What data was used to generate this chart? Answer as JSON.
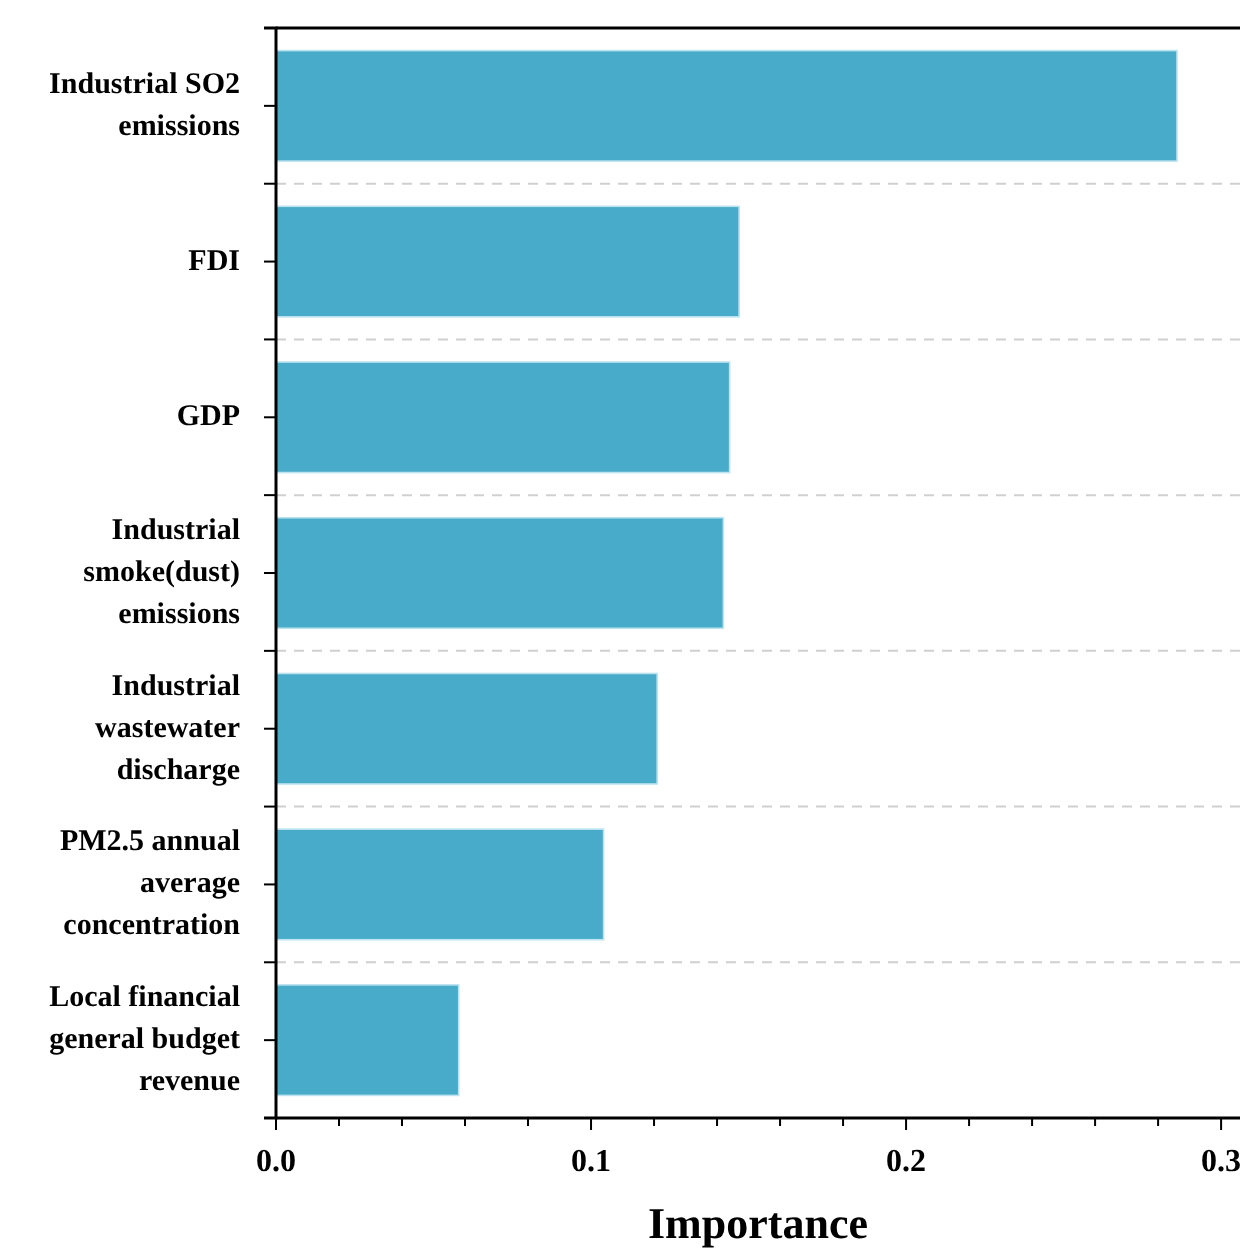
{
  "chart_data": {
    "type": "bar",
    "orientation": "horizontal",
    "xlabel": "Importance",
    "categories": [
      "Industrial SO2 emissions",
      "FDI",
      "GDP",
      "Industrial smoke(dust) emissions",
      "Industrial wastewater discharge",
      "PM2.5 annual average concentration",
      "Local financial general budget revenue"
    ],
    "values": [
      0.286,
      0.147,
      0.144,
      0.142,
      0.121,
      0.104,
      0.058
    ],
    "color": "#48abca",
    "xlim": [
      0,
      0.306
    ],
    "xticks": [
      {
        "value": 0,
        "label": "0.0"
      },
      {
        "value": 0.02,
        "label": null
      },
      {
        "value": 0.04,
        "label": null
      },
      {
        "value": 0.06,
        "label": null
      },
      {
        "value": 0.08,
        "label": null
      },
      {
        "value": 0.1,
        "label": "0.1"
      },
      {
        "value": 0.12,
        "label": null
      },
      {
        "value": 0.14,
        "label": null
      },
      {
        "value": 0.16,
        "label": null
      },
      {
        "value": 0.18,
        "label": null
      },
      {
        "value": 0.2,
        "label": "0.2"
      },
      {
        "value": 0.22,
        "label": null
      },
      {
        "value": 0.24,
        "label": null
      },
      {
        "value": 0.26,
        "label": null
      },
      {
        "value": 0.28,
        "label": null
      },
      {
        "value": 0.3,
        "label": "0.3"
      }
    ],
    "grid": "y"
  }
}
